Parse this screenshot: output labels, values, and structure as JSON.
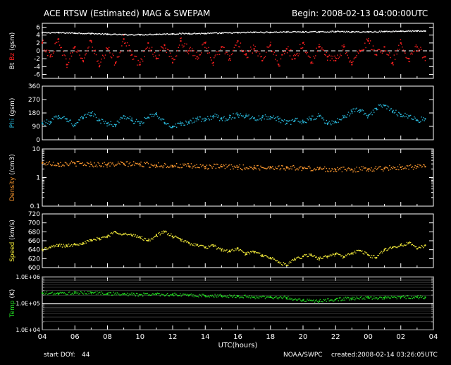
{
  "header": {
    "title": "ACE RTSW (Estimated) MAG & SWEPAM",
    "begin": "Begin: 2008-02-13 04:00:00UTC"
  },
  "footer": {
    "start_doy_label": "start DOY:",
    "start_doy_value": "44",
    "agency": "NOAA/SWPC",
    "created": "created:2008-02-14 03:26:05UTC"
  },
  "colors": {
    "background": "#000000",
    "axes": "#ffffff",
    "bt": "#ffffff",
    "bz": "#ff2020",
    "phi": "#29b6d8",
    "density": "#ff9a30",
    "speed": "#f2ea3a",
    "temp": "#22dd22"
  },
  "chart_data": [
    {
      "type": "scatter",
      "panel": "mag",
      "ylabel": [
        "Bt",
        "Bz",
        "(gsm)"
      ],
      "ylim": [
        -7,
        7
      ],
      "yticks": [
        -6,
        -4,
        -2,
        0,
        2,
        4,
        6
      ],
      "tick_labels": [
        "-6",
        "-4",
        "-2",
        "0",
        "2",
        "4",
        "6"
      ],
      "reference_line": 0,
      "series": [
        {
          "name": "Bt",
          "x": [
            4,
            5,
            6,
            7,
            8,
            9,
            10,
            11,
            12,
            13,
            14,
            15,
            16,
            17,
            18,
            19,
            20,
            21,
            22,
            23,
            24,
            25,
            26,
            27,
            27.5
          ],
          "y": [
            4.6,
            4.6,
            4.5,
            4.4,
            4.2,
            4.1,
            4.1,
            4.2,
            4.3,
            4.4,
            4.4,
            4.5,
            4.6,
            4.7,
            4.7,
            4.8,
            4.8,
            4.8,
            4.9,
            4.8,
            4.8,
            4.9,
            5.0,
            5.0,
            5.0
          ]
        },
        {
          "name": "Bz",
          "x": [
            4,
            4.5,
            5,
            5.5,
            6,
            6.5,
            7,
            7.5,
            8,
            8.5,
            9,
            9.5,
            10,
            10.5,
            11,
            11.5,
            12,
            12.5,
            13,
            13.5,
            14,
            14.5,
            15,
            15.5,
            16,
            16.5,
            17,
            17.5,
            18,
            18.5,
            19,
            19.5,
            20,
            20.5,
            21,
            21.5,
            22,
            22.5,
            23,
            23.5,
            24,
            24.5,
            25,
            25.5,
            26,
            26.5,
            27,
            27.5
          ],
          "y": [
            2.0,
            -1.5,
            3.0,
            -3.5,
            1.0,
            -2.5,
            2.5,
            -4.0,
            0.5,
            -3.0,
            3.0,
            -1.0,
            -3.5,
            2.0,
            -2.0,
            1.5,
            -3.0,
            2.5,
            0.0,
            -1.5,
            2.0,
            -3.0,
            1.0,
            -2.0,
            2.5,
            -1.0,
            0.5,
            -2.5,
            1.5,
            -3.5,
            0.5,
            -2.0,
            2.0,
            -3.0,
            1.0,
            -1.5,
            -2.5,
            1.0,
            -3.5,
            0.0,
            2.5,
            -1.0,
            1.0,
            -3.0,
            2.0,
            -2.0,
            1.0,
            -1.5
          ]
        }
      ]
    },
    {
      "type": "scatter",
      "panel": "phi",
      "ylabel": "Phi (gsm)",
      "ylim": [
        0,
        360
      ],
      "yticks": [
        0,
        90,
        180,
        270,
        360
      ],
      "tick_labels": [
        "0",
        "90",
        "180",
        "270",
        "360"
      ],
      "series": [
        {
          "name": "Phi",
          "x": [
            4,
            4.5,
            5,
            5.5,
            6,
            6.5,
            7,
            7.5,
            8,
            8.5,
            9,
            9.5,
            10,
            10.5,
            11,
            11.5,
            12,
            12.5,
            13,
            13.5,
            14,
            14.5,
            15,
            15.5,
            16,
            16.5,
            17,
            17.5,
            18,
            18.5,
            19,
            19.5,
            20,
            20.5,
            21,
            21.5,
            22,
            22.5,
            23,
            23.5,
            24,
            24.5,
            25,
            25.5,
            26,
            26.5,
            27,
            27.5
          ],
          "y": [
            110,
            120,
            160,
            140,
            95,
            150,
            180,
            130,
            110,
            100,
            160,
            130,
            110,
            150,
            170,
            115,
            90,
            110,
            120,
            140,
            130,
            160,
            140,
            150,
            170,
            160,
            145,
            150,
            155,
            140,
            110,
            130,
            120,
            140,
            160,
            110,
            120,
            150,
            190,
            200,
            160,
            210,
            230,
            190,
            170,
            160,
            130,
            140
          ]
        }
      ]
    },
    {
      "type": "scatter",
      "panel": "density",
      "ylabel": "Density (/cm3)",
      "scale": "log",
      "ylim": [
        0.1,
        10
      ],
      "tick_labels": [
        "10",
        "1",
        "0.1"
      ],
      "series": [
        {
          "name": "Density",
          "x": [
            4,
            5,
            6,
            7,
            8,
            9,
            10,
            11,
            12,
            13,
            14,
            15,
            16,
            17,
            18,
            19,
            20,
            21,
            22,
            23,
            24,
            25,
            26,
            27,
            27.5
          ],
          "y": [
            3.2,
            3.0,
            3.1,
            2.9,
            2.8,
            3.0,
            2.9,
            2.7,
            2.6,
            2.5,
            2.4,
            2.4,
            2.3,
            2.2,
            2.3,
            2.2,
            2.1,
            2.0,
            1.9,
            1.9,
            2.0,
            2.1,
            2.3,
            2.4,
            2.4
          ]
        }
      ]
    },
    {
      "type": "scatter",
      "panel": "speed",
      "ylabel": "Speed (km/s)",
      "ylim": [
        600,
        720
      ],
      "yticks": [
        600,
        620,
        640,
        660,
        680,
        700,
        720
      ],
      "tick_labels": [
        "600",
        "620",
        "640",
        "660",
        "680",
        "700",
        "720"
      ],
      "series": [
        {
          "name": "Speed",
          "x": [
            4,
            4.5,
            5,
            5.5,
            6,
            6.5,
            7,
            7.5,
            8,
            8.5,
            9,
            9.5,
            10,
            10.5,
            11,
            11.5,
            12,
            12.5,
            13,
            13.5,
            14,
            14.5,
            15,
            15.5,
            16,
            16.5,
            17,
            17.5,
            18,
            18.5,
            19,
            19.5,
            20,
            20.5,
            21,
            21.5,
            22,
            22.5,
            23,
            23.5,
            24,
            24.5,
            25,
            25.5,
            26,
            26.5,
            27,
            27.5
          ],
          "y": [
            640,
            645,
            650,
            648,
            652,
            655,
            660,
            665,
            670,
            680,
            675,
            672,
            668,
            660,
            672,
            680,
            670,
            662,
            655,
            650,
            645,
            648,
            640,
            636,
            642,
            630,
            635,
            628,
            622,
            612,
            605,
            618,
            625,
            628,
            620,
            625,
            630,
            624,
            632,
            638,
            628,
            622,
            640,
            645,
            650,
            655,
            642,
            650
          ]
        }
      ]
    },
    {
      "type": "scatter",
      "panel": "temp",
      "ylabel": "Temp (K)",
      "scale": "log",
      "ylim": [
        10000,
        1000000
      ],
      "tick_labels": [
        "1.0E+06",
        "1.0E+05",
        "1.0E+04"
      ],
      "xlabel": "UTC(hours)",
      "x_tick_labels": [
        "04",
        "06",
        "08",
        "10",
        "12",
        "14",
        "16",
        "18",
        "20",
        "22",
        "00",
        "02",
        "04"
      ],
      "xlim": [
        4,
        28
      ],
      "series": [
        {
          "name": "Temp",
          "x": [
            4,
            5,
            6,
            7,
            8,
            9,
            10,
            11,
            12,
            13,
            14,
            15,
            16,
            17,
            18,
            19,
            20,
            21,
            22,
            23,
            24,
            25,
            26,
            27,
            27.5
          ],
          "y": [
            240000,
            230000,
            240000,
            250000,
            230000,
            220000,
            210000,
            220000,
            210000,
            200000,
            190000,
            190000,
            180000,
            170000,
            170000,
            160000,
            130000,
            120000,
            140000,
            150000,
            160000,
            160000,
            170000,
            170000,
            170000
          ]
        }
      ]
    }
  ]
}
